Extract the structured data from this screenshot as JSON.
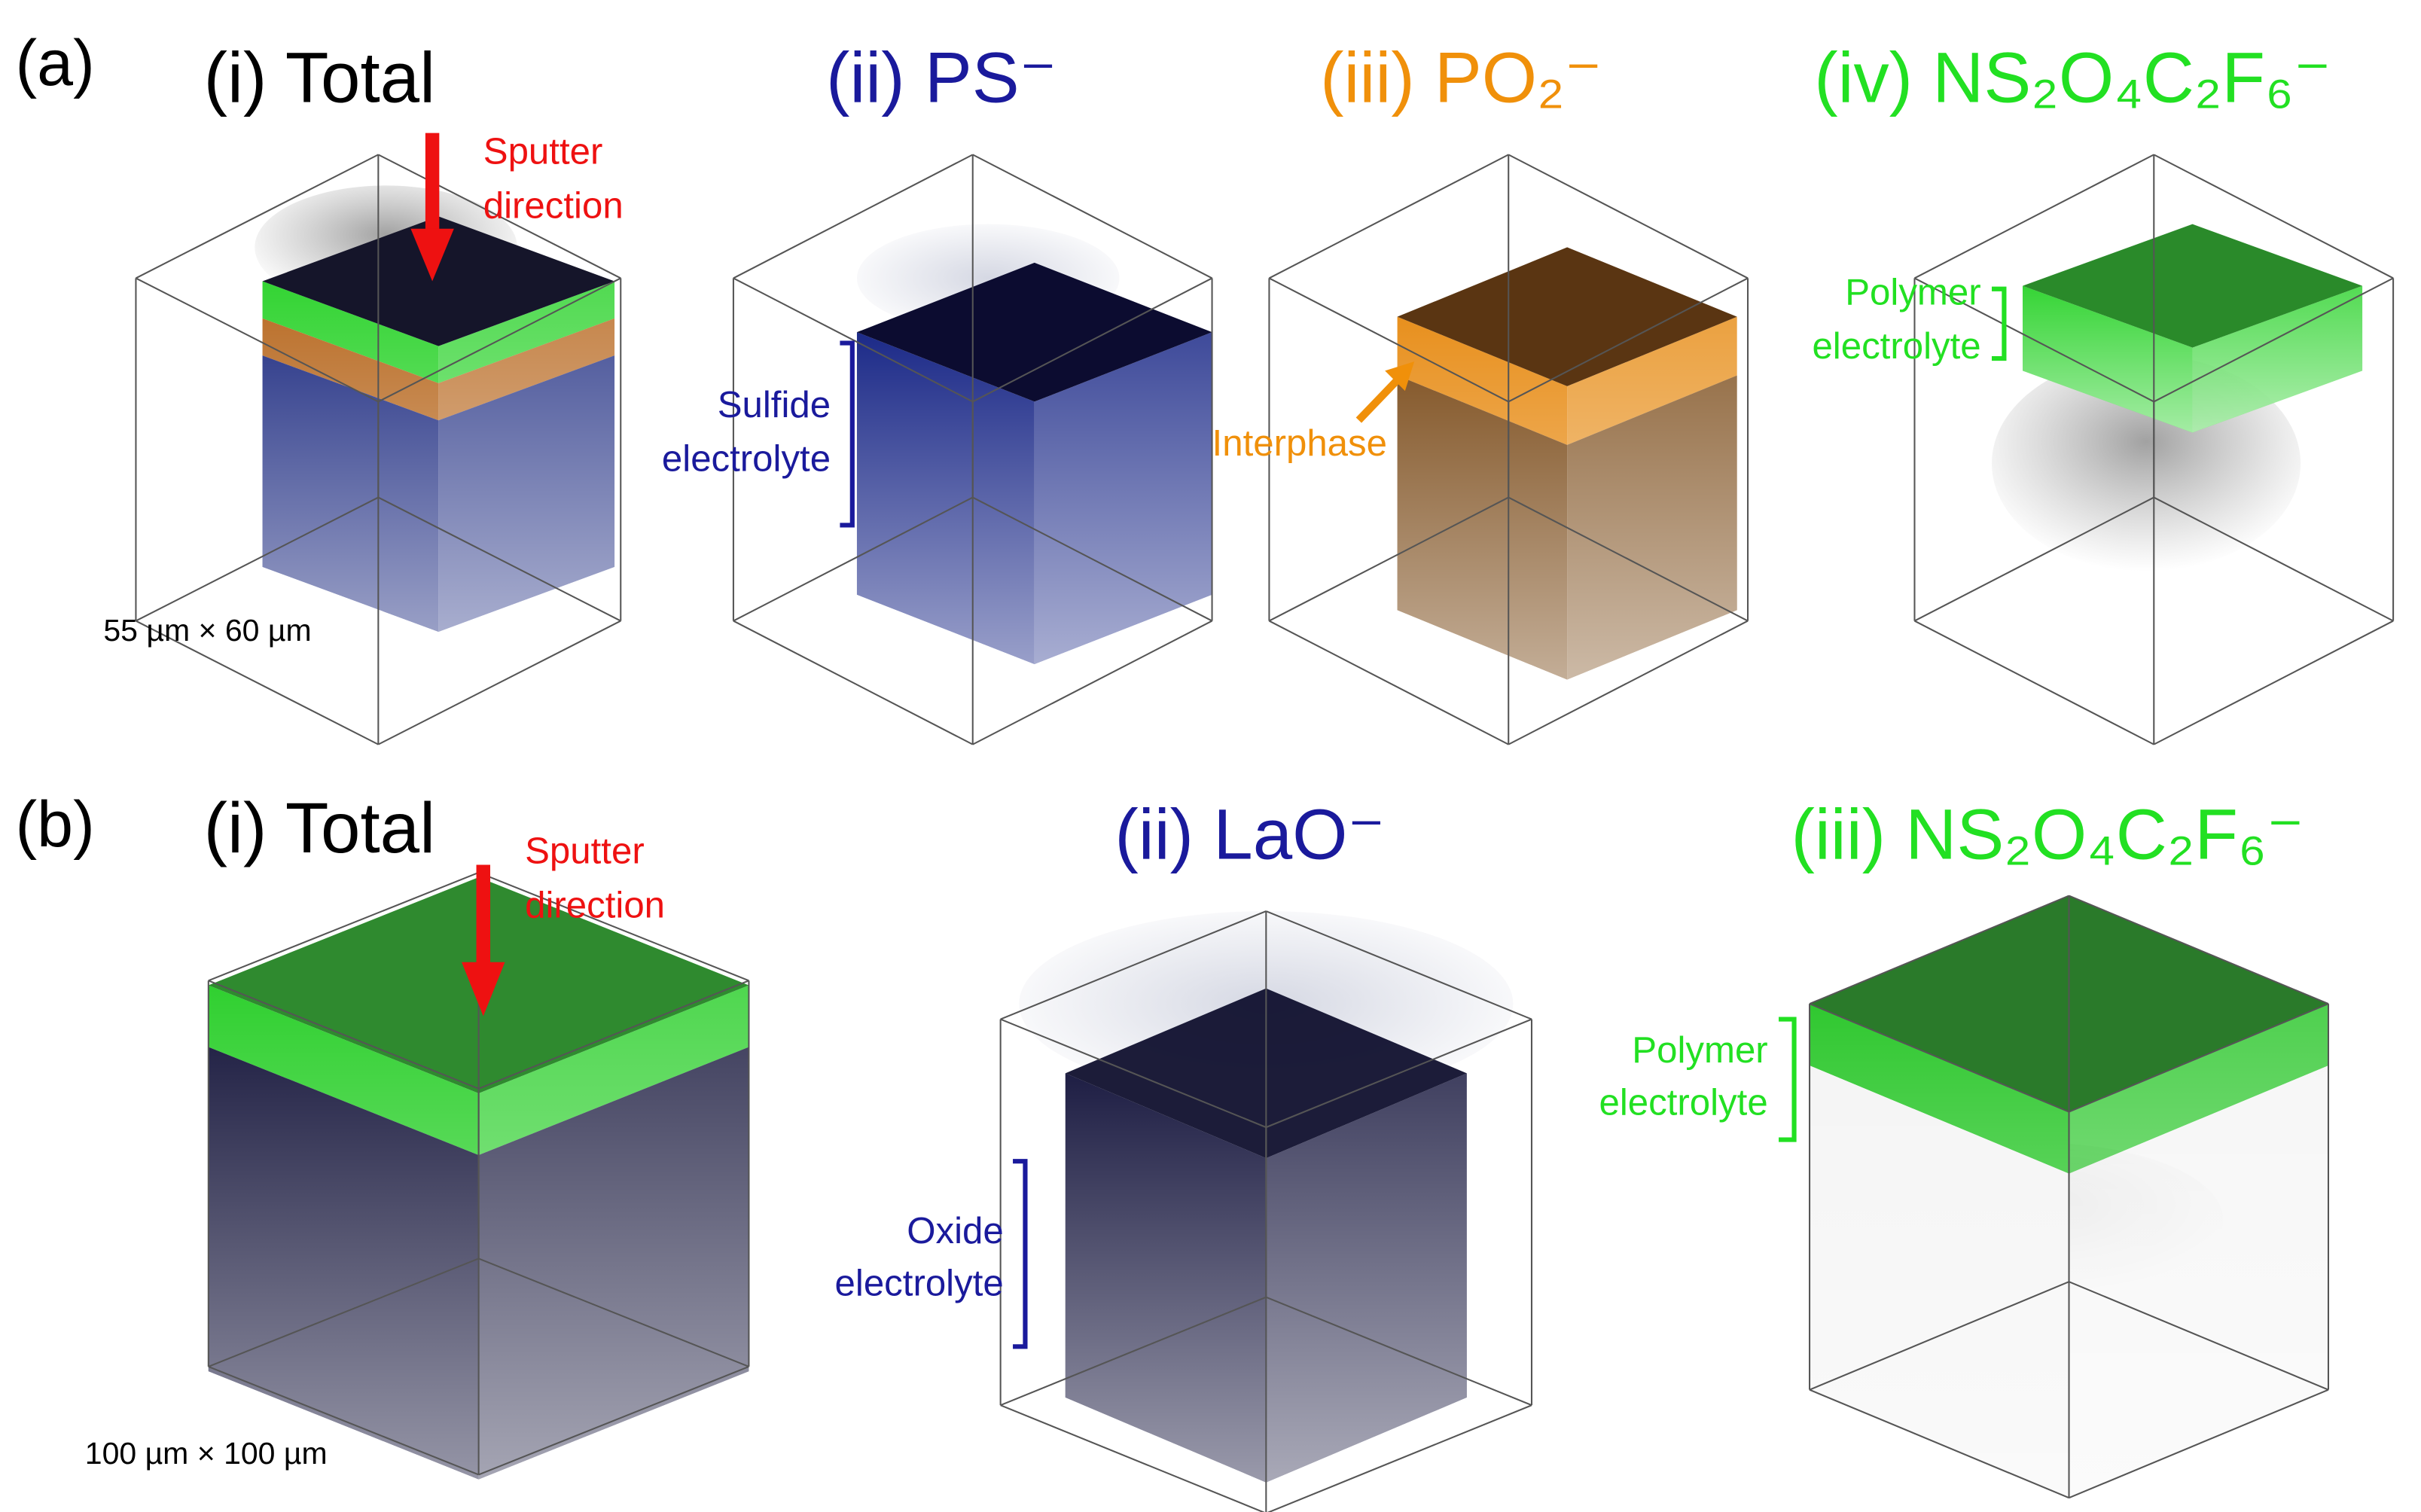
{
  "figure": {
    "panels": [
      {
        "label": "(a)",
        "scale": "55 µm × 60 µm",
        "sputter": [
          "Sputter",
          "direction"
        ],
        "subpanels": [
          {
            "title": "(i) Total"
          },
          {
            "title": "(ii) PS⁻",
            "annotation": [
              "Sulfide",
              "electrolyte"
            ]
          },
          {
            "title": "(iii) PO₂⁻",
            "annotation": [
              "Interphase"
            ]
          },
          {
            "title": "(iv) NS₂O₄C₂F₆⁻",
            "annotation": [
              "Polymer",
              "electrolyte"
            ]
          }
        ]
      },
      {
        "label": "(b)",
        "scale": "100 µm × 100 µm",
        "sputter": [
          "Sputter",
          "direction"
        ],
        "subpanels": [
          {
            "title": "(i) Total"
          },
          {
            "title": "(ii) LaO⁻",
            "annotation": [
              "Oxide",
              "electrolyte"
            ]
          },
          {
            "title": "(iii) NS₂O₄C₂F₆⁻",
            "annotation": [
              "Polymer",
              "electrolyte"
            ]
          }
        ]
      }
    ]
  }
}
